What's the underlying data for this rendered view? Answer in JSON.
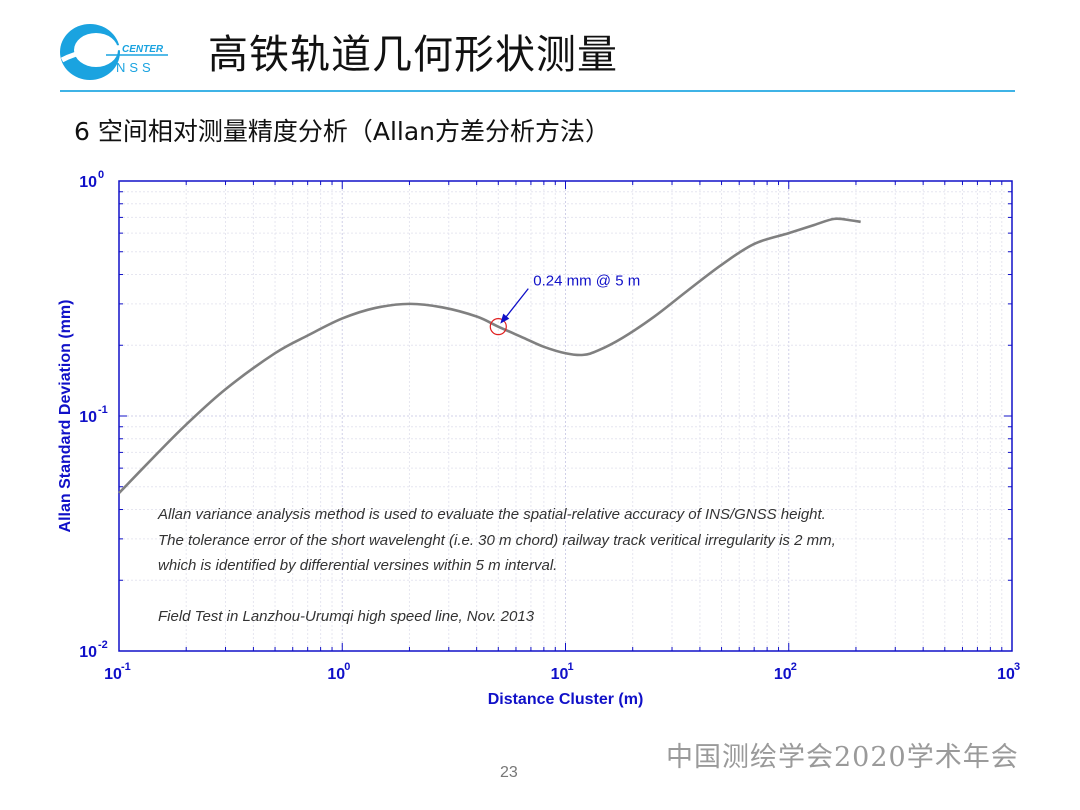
{
  "logo": {
    "text_top": "CENTER",
    "text_bottom": "NSS",
    "color": "#1aa3e0"
  },
  "header": {
    "title": "高铁轨道几何形状测量",
    "subtitle": "6 空间相对测量精度分析（Allan方差分析方法）"
  },
  "chart_data": {
    "type": "line",
    "xlabel": "Distance Cluster (m)",
    "ylabel": "Allan Standard Deviation (mm)",
    "x_scale": "log",
    "y_scale": "log",
    "xlim": [
      0.1,
      1000
    ],
    "ylim": [
      0.01,
      1
    ],
    "x_ticks": [
      0.1,
      1,
      10,
      100,
      1000
    ],
    "x_tick_labels": [
      {
        "base": "10",
        "exp": "-1"
      },
      {
        "base": "10",
        "exp": "0"
      },
      {
        "base": "10",
        "exp": "1"
      },
      {
        "base": "10",
        "exp": "2"
      },
      {
        "base": "10",
        "exp": "3"
      }
    ],
    "y_ticks": [
      0.01,
      0.1,
      1
    ],
    "y_tick_labels": [
      {
        "base": "10",
        "exp": "-2"
      },
      {
        "base": "10",
        "exp": "-1"
      },
      {
        "base": "10",
        "exp": "0"
      }
    ],
    "grid": true,
    "series": [
      {
        "color": "#808080",
        "x": [
          0.1,
          0.15,
          0.2,
          0.3,
          0.5,
          0.7,
          1.0,
          1.4,
          2.0,
          2.8,
          4.0,
          5.0,
          6.5,
          8.0,
          10.0,
          12.0,
          14.0,
          18.0,
          25.0,
          35.0,
          50.0,
          70.0,
          100.0,
          130.0,
          160.0,
          190.0,
          210.0
        ],
        "y": [
          0.047,
          0.07,
          0.092,
          0.13,
          0.185,
          0.22,
          0.26,
          0.288,
          0.3,
          0.29,
          0.265,
          0.24,
          0.215,
          0.197,
          0.185,
          0.182,
          0.19,
          0.215,
          0.265,
          0.34,
          0.44,
          0.54,
          0.6,
          0.65,
          0.69,
          0.68,
          0.67
        ]
      }
    ],
    "annotation": {
      "text": "0.24 mm @ 5 m",
      "x": 5,
      "y": 0.24,
      "color": "#1010c8",
      "marker_color": "#e02020"
    },
    "axis_color": "#1010c8",
    "notes": [
      "Allan variance analysis method is used to evaluate the spatial-relative accuracy of INS/GNSS height.",
      "The tolerance error of the short wavelenght (i.e. 30 m chord) railway track veritical irregularity is 2 mm,",
      "which is identified by differential versines within 5 m interval."
    ],
    "field_note": "Field Test in Lanzhou-Urumqi high speed line, Nov. 2013"
  },
  "footer": {
    "organization": "中国测绘学会2020学术年会",
    "page_number": "23"
  }
}
